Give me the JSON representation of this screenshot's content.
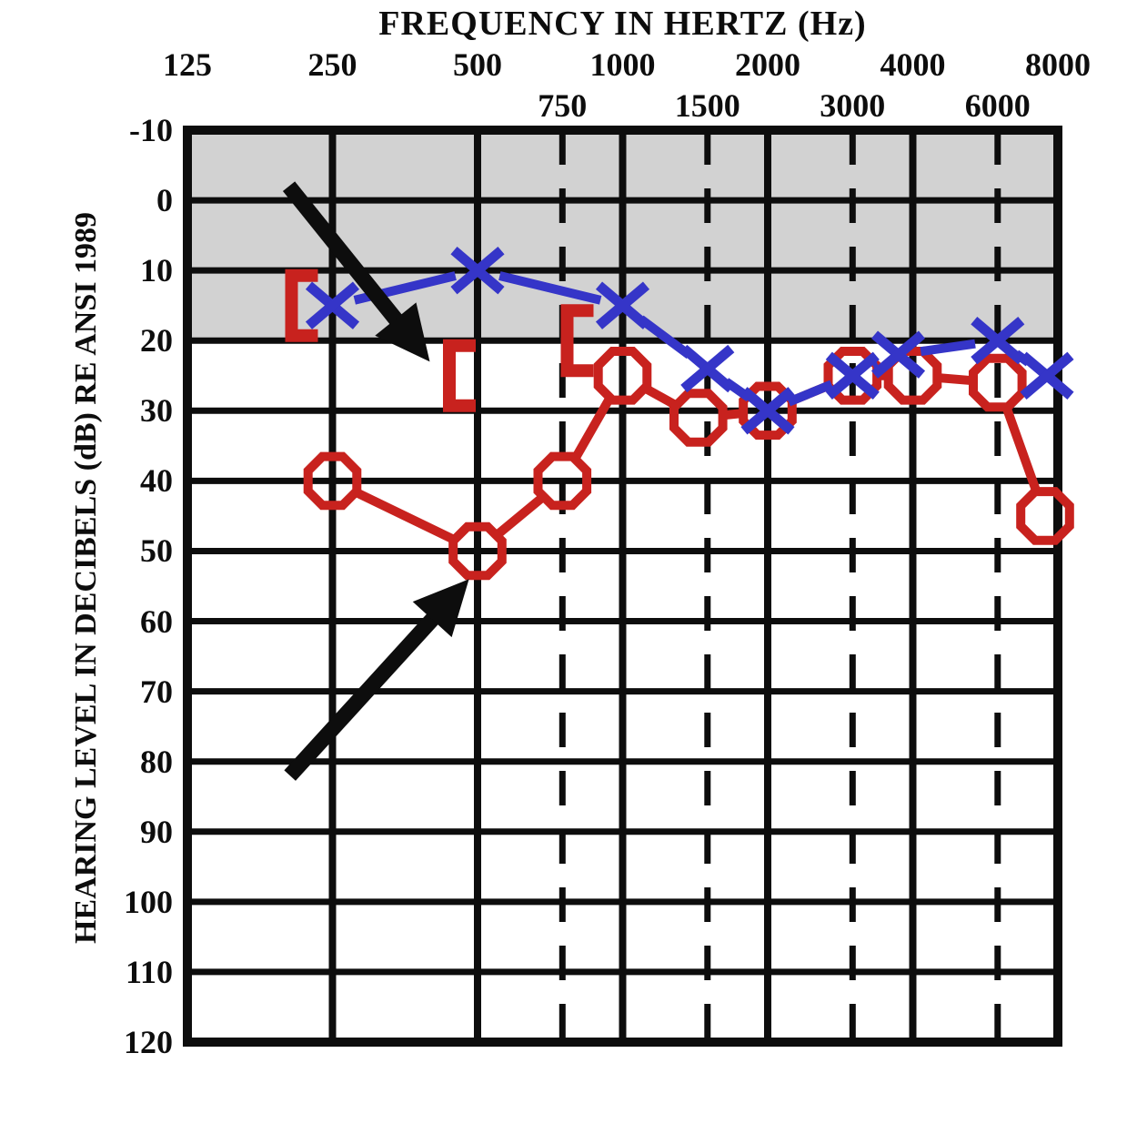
{
  "page": {
    "background_color": "#ffffff"
  },
  "chart_data": {
    "type": "line",
    "chart_kind": "audiogram",
    "title": "FREQUENCY IN HERTZ (Hz)",
    "ylabel": "HEARING LEVEL IN DECIBELS (dB) RE ANSI 1989",
    "x_axis": {
      "scale": "log",
      "range": [
        125,
        8000
      ],
      "major_ticks": [
        125,
        250,
        500,
        1000,
        2000,
        4000,
        8000
      ],
      "minor_ticks": [
        750,
        1500,
        3000,
        6000
      ]
    },
    "y_axis": {
      "range": [
        -10,
        120
      ],
      "tick_step": 10,
      "ticks": [
        -10,
        0,
        10,
        20,
        30,
        40,
        50,
        60,
        70,
        80,
        90,
        100,
        110,
        120
      ]
    },
    "normal_range_shading": {
      "from_db": -10,
      "to_db": 20,
      "color": "#d2d2d2"
    },
    "grid": {
      "line_color": "#0d0d0d",
      "minor_vertical_style": "dashed"
    },
    "series": [
      {
        "name": "right-ear-air-conduction",
        "marker": "circle",
        "color": "#c8221e",
        "points": [
          {
            "f": 250,
            "db": 40
          },
          {
            "f": 500,
            "db": 50
          },
          {
            "f": 750,
            "db": 40
          },
          {
            "f": 1000,
            "db": 25
          },
          {
            "f": 1500,
            "db": 31,
            "dx": -10
          },
          {
            "f": 2000,
            "db": 30
          },
          {
            "f": 3000,
            "db": 25
          },
          {
            "f": 4000,
            "db": 25
          },
          {
            "f": 6000,
            "db": 26
          },
          {
            "f": 8000,
            "db": 45,
            "dx": -14
          }
        ]
      },
      {
        "name": "left-ear-air-conduction",
        "marker": "x",
        "color": "#3535c8",
        "points": [
          {
            "f": 250,
            "db": 15
          },
          {
            "f": 500,
            "db": 10
          },
          {
            "f": 1000,
            "db": 15
          },
          {
            "f": 1500,
            "db": 24
          },
          {
            "f": 2000,
            "db": 30
          },
          {
            "f": 3000,
            "db": 25
          },
          {
            "f": 4000,
            "db": 22,
            "dx": -16
          },
          {
            "f": 6000,
            "db": 20
          },
          {
            "f": 8000,
            "db": 25,
            "dx": -12
          }
        ]
      },
      {
        "name": "bone-conduction-brackets",
        "marker": "left-bracket",
        "color": "#c8221e",
        "points": [
          {
            "f": 250,
            "db": 15,
            "dx": -45
          },
          {
            "f": 500,
            "db": 25,
            "dx": -31
          },
          {
            "f": 1000,
            "db": 20,
            "dx": -61
          }
        ]
      }
    ],
    "annotations": [
      {
        "type": "arrow",
        "color": "#0d0d0d",
        "from": {
          "f": 203,
          "db": -2
        },
        "to": {
          "f": 398,
          "db": 23
        },
        "points_at": "bone-conduction bracket at 500 Hz"
      },
      {
        "type": "arrow",
        "color": "#0d0d0d",
        "from": {
          "f": 204,
          "db": 82
        },
        "to": {
          "f": 480,
          "db": 54
        },
        "points_at": "air-conduction circle at 500 Hz"
      }
    ]
  }
}
